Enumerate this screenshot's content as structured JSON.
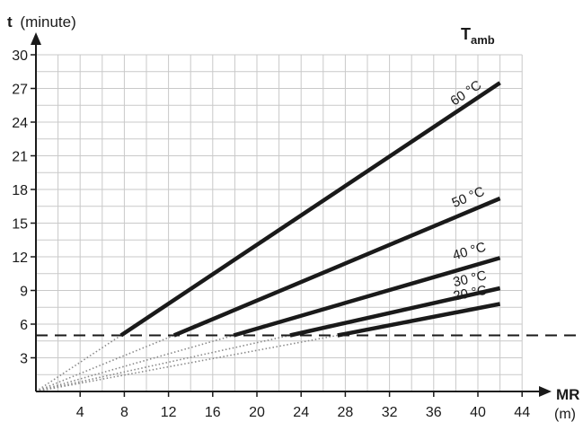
{
  "chart_data": {
    "type": "line",
    "title": "",
    "ylabel": {
      "symbol": "t",
      "unit": "(minute)"
    },
    "xlabel": {
      "symbol": "MR",
      "unit": "(m)"
    },
    "legend_title": {
      "base": "T",
      "sub": "amb"
    },
    "xlim": [
      0,
      44
    ],
    "ylim": [
      0,
      30
    ],
    "x_ticks": [
      4,
      8,
      12,
      16,
      20,
      24,
      28,
      32,
      36,
      40,
      44
    ],
    "y_ticks": [
      3,
      6,
      9,
      12,
      15,
      18,
      21,
      24,
      27,
      30
    ],
    "x_grid_step": 2,
    "y_grid_step": 1.5,
    "grid": true,
    "threshold": 5,
    "series": [
      {
        "name": "60 °C",
        "start": [
          7.7,
          5
        ],
        "end": [
          42,
          27.5
        ]
      },
      {
        "name": "50 °C",
        "start": [
          12.5,
          5
        ],
        "end": [
          42,
          17.2
        ]
      },
      {
        "name": "40 °C",
        "start": [
          17.9,
          5
        ],
        "end": [
          42,
          11.9
        ]
      },
      {
        "name": "30 °C",
        "start": [
          23.0,
          5
        ],
        "end": [
          42,
          9.2
        ]
      },
      {
        "name": "20 °C",
        "start": [
          27.3,
          5
        ],
        "end": [
          42,
          7.8
        ]
      }
    ]
  }
}
